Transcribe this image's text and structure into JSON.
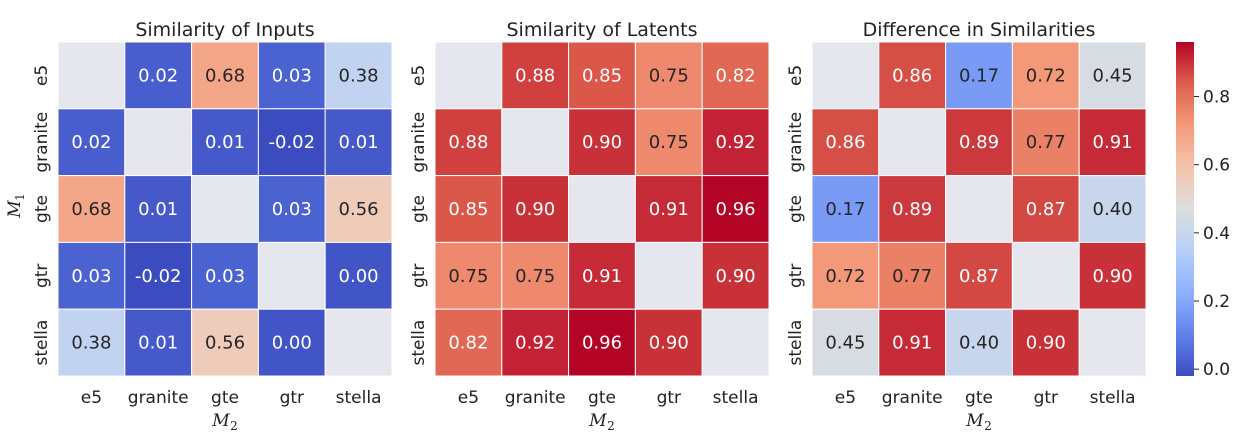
{
  "chart_data": {
    "type": "heatmap",
    "labels": [
      "e5",
      "granite",
      "gte",
      "gtr",
      "stella"
    ],
    "xlabel": "M",
    "xlabel_sub": "2",
    "ylabel": "M",
    "ylabel_sub": "1",
    "colormap": "coolwarm",
    "vmin": -0.02,
    "vmax": 0.96,
    "colorbar_ticks": [
      "0.0",
      "0.2",
      "0.4",
      "0.6",
      "0.8"
    ],
    "colorbar_tick_values": [
      0.0,
      0.2,
      0.4,
      0.6,
      0.8
    ],
    "diagonal_color": "#e5e6ee",
    "panels": [
      {
        "title": "Similarity of Inputs",
        "values": [
          [
            null,
            0.02,
            0.68,
            0.03,
            0.38
          ],
          [
            0.02,
            null,
            0.01,
            -0.02,
            0.01
          ],
          [
            0.68,
            0.01,
            null,
            0.03,
            0.56
          ],
          [
            0.03,
            -0.02,
            0.03,
            null,
            0.0
          ],
          [
            0.38,
            0.01,
            0.56,
            0.0,
            null
          ]
        ],
        "labels_text": [
          [
            "",
            "0.02",
            "0.68",
            "0.03",
            "0.38"
          ],
          [
            "0.02",
            "",
            "0.01",
            "-0.02",
            "0.01"
          ],
          [
            "0.68",
            "0.01",
            "",
            "0.03",
            "0.56"
          ],
          [
            "0.03",
            "-0.02",
            "0.03",
            "",
            "0.00"
          ],
          [
            "0.38",
            "0.01",
            "0.56",
            "0.00",
            ""
          ]
        ]
      },
      {
        "title": "Similarity of Latents",
        "values": [
          [
            null,
            0.88,
            0.85,
            0.75,
            0.82
          ],
          [
            0.88,
            null,
            0.9,
            0.75,
            0.92
          ],
          [
            0.85,
            0.9,
            null,
            0.91,
            0.96
          ],
          [
            0.75,
            0.75,
            0.91,
            null,
            0.9
          ],
          [
            0.82,
            0.92,
            0.96,
            0.9,
            null
          ]
        ],
        "labels_text": [
          [
            "",
            "0.88",
            "0.85",
            "0.75",
            "0.82"
          ],
          [
            "0.88",
            "",
            "0.90",
            "0.75",
            "0.92"
          ],
          [
            "0.85",
            "0.90",
            "",
            "0.91",
            "0.96"
          ],
          [
            "0.75",
            "0.75",
            "0.91",
            "",
            "0.90"
          ],
          [
            "0.82",
            "0.92",
            "0.96",
            "0.90",
            ""
          ]
        ]
      },
      {
        "title": "Difference in Similarities",
        "values": [
          [
            null,
            0.86,
            0.17,
            0.72,
            0.45
          ],
          [
            0.86,
            null,
            0.89,
            0.77,
            0.91
          ],
          [
            0.17,
            0.89,
            null,
            0.87,
            0.4
          ],
          [
            0.72,
            0.77,
            0.87,
            null,
            0.9
          ],
          [
            0.45,
            0.91,
            0.4,
            0.9,
            null
          ]
        ],
        "labels_text": [
          [
            "",
            "0.86",
            "0.17",
            "0.72",
            "0.45"
          ],
          [
            "0.86",
            "",
            "0.89",
            "0.77",
            "0.91"
          ],
          [
            "0.17",
            "0.89",
            "",
            "0.87",
            "0.40"
          ],
          [
            "0.72",
            "0.77",
            "0.87",
            "",
            "0.90"
          ],
          [
            "0.45",
            "0.91",
            "0.40",
            "0.90",
            ""
          ]
        ]
      }
    ]
  }
}
